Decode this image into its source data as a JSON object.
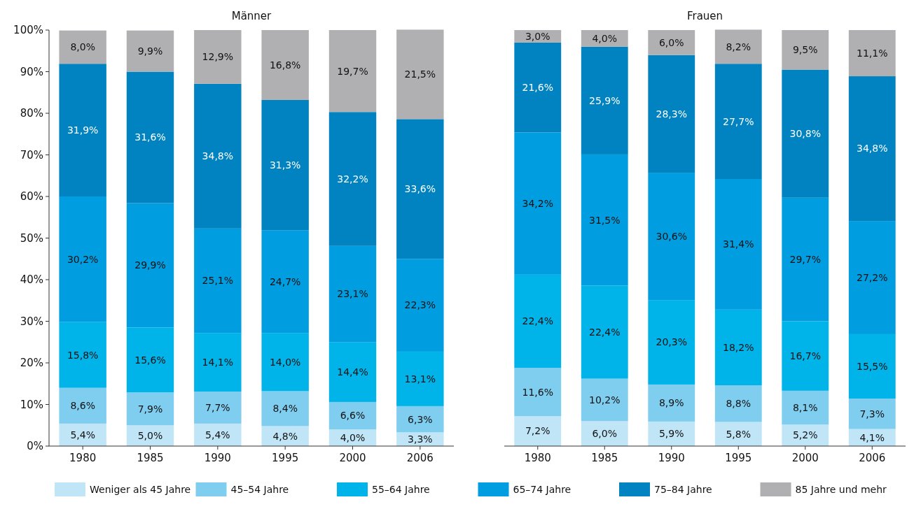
{
  "chart_data": [
    {
      "type": "bar",
      "stacked": true,
      "title": "Männer",
      "categories": [
        "1980",
        "1985",
        "1990",
        "1995",
        "2000",
        "2006"
      ],
      "ylim": [
        0,
        100
      ],
      "yticks": [
        {
          "value": 0,
          "label": "0%"
        },
        {
          "value": 10,
          "label": "10%"
        },
        {
          "value": 20,
          "label": "20%"
        },
        {
          "value": 30,
          "label": "30%"
        },
        {
          "value": 40,
          "label": "40%"
        },
        {
          "value": 50,
          "label": "50%"
        },
        {
          "value": 60,
          "label": "60%"
        },
        {
          "value": 70,
          "label": "70%"
        },
        {
          "value": 80,
          "label": "80%"
        },
        {
          "value": 90,
          "label": "90%"
        },
        {
          "value": 100,
          "label": "100%"
        }
      ],
      "legend": "bottom",
      "series": [
        {
          "name": "Weniger als 45 Jahre",
          "color": "#bfe5f7",
          "values": [
            5.4,
            5.0,
            5.4,
            4.8,
            4.0,
            3.3
          ],
          "value_labels": [
            "5,4%",
            "5,0%",
            "5,4%",
            "4,8%",
            "4,0%",
            "3,3%"
          ]
        },
        {
          "name": "45–54 Jahre",
          "color": "#7fcdef",
          "values": [
            8.6,
            7.9,
            7.7,
            8.4,
            6.6,
            6.3
          ],
          "value_labels": [
            "8,6%",
            "7,9%",
            "7,7%",
            "8,4%",
            "6,6%",
            "6,3%"
          ]
        },
        {
          "name": "55–64 Jahre",
          "color": "#00b3e8",
          "values": [
            15.8,
            15.6,
            14.1,
            14.0,
            14.4,
            13.1
          ],
          "value_labels": [
            "15,8%",
            "15,6%",
            "14,1%",
            "14,0%",
            "14,4%",
            "13,1%"
          ]
        },
        {
          "name": "65–74 Jahre",
          "color": "#009ee0",
          "values": [
            30.2,
            29.9,
            25.1,
            24.7,
            23.1,
            22.3
          ],
          "value_labels": [
            "30,2%",
            "29,9%",
            "25,1%",
            "24,7%",
            "23,1%",
            "22,3%"
          ]
        },
        {
          "name": "75–84 Jahre",
          "color": "#0083c0",
          "values": [
            31.9,
            31.6,
            34.8,
            31.3,
            32.2,
            33.6
          ],
          "value_labels": [
            "31,9%",
            "31,6%",
            "34,8%",
            "31,3%",
            "32,2%",
            "33,6%"
          ]
        },
        {
          "name": "85 Jahre und mehr",
          "color": "#b0b0b2",
          "values": [
            8.0,
            9.9,
            12.9,
            16.8,
            19.7,
            21.5
          ],
          "value_labels": [
            "8,0%",
            "9,9%",
            "12,9%",
            "16,8%",
            "19,7%",
            "21,5%"
          ]
        }
      ]
    },
    {
      "type": "bar",
      "stacked": true,
      "title": "Frauen",
      "categories": [
        "1980",
        "1985",
        "1990",
        "1995",
        "2000",
        "2006"
      ],
      "ylim": [
        0,
        100
      ],
      "tick_labels": "x",
      "series": [
        {
          "color": "#bfe5f7",
          "values": [
            7.2,
            6.0,
            5.9,
            5.8,
            5.2,
            4.1
          ],
          "value_labels": [
            "7,2%",
            "6,0%",
            "5,9%",
            "5,8%",
            "5,2%",
            "4,1%"
          ]
        },
        {
          "color": "#7fcdef",
          "values": [
            11.6,
            10.2,
            8.9,
            8.8,
            8.1,
            7.3
          ],
          "value_labels": [
            "11,6%",
            "10,2%",
            "8,9%",
            "8,8%",
            "8,1%",
            "7,3%"
          ]
        },
        {
          "color": "#00b3e8",
          "values": [
            22.4,
            22.4,
            20.3,
            18.2,
            16.7,
            15.5
          ],
          "value_labels": [
            "22,4%",
            "22,4%",
            "20,3%",
            "18,2%",
            "16,7%",
            "15,5%"
          ]
        },
        {
          "color": "#009ee0",
          "values": [
            34.2,
            31.5,
            30.6,
            31.4,
            29.7,
            27.2
          ],
          "value_labels": [
            "34,2%",
            "31,5%",
            "30,6%",
            "31,4%",
            "29,7%",
            "27,2%"
          ]
        },
        {
          "color": "#0083c0",
          "values": [
            21.6,
            25.9,
            28.3,
            27.7,
            30.8,
            34.8
          ],
          "value_labels": [
            "21,6%",
            "25,9%",
            "28,3%",
            "27,7%",
            "30,8%",
            "34,8%"
          ]
        },
        {
          "color": "#b0b0b2",
          "values": [
            3.0,
            4.0,
            6.0,
            8.2,
            9.5,
            11.1
          ],
          "value_labels": [
            "3,0%",
            "4,0%",
            "6,0%",
            "8,2%",
            "9,5%",
            "11,1%"
          ]
        }
      ]
    }
  ]
}
